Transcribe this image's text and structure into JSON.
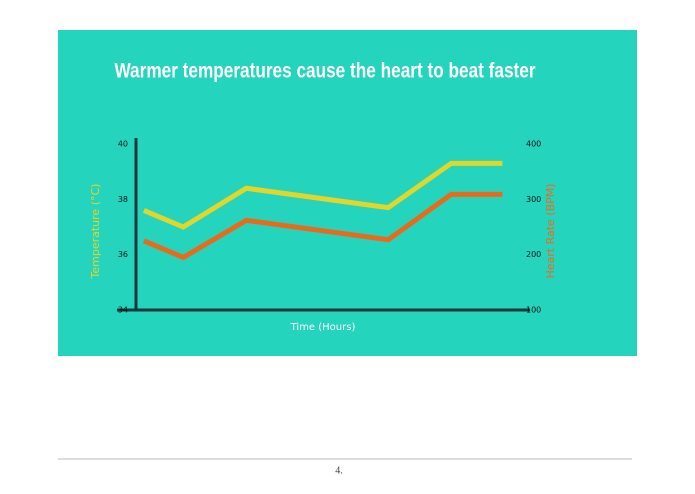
{
  "chart_data": {
    "type": "line",
    "title": "Warmer temperatures cause the heart to beat faster",
    "x_label": "Time (Hours)",
    "y_label": "Temperature (°C)",
    "y2_label": "Heart Rate (BPM)",
    "x": [
      0.2,
      1.2,
      2.8,
      6.4,
      8,
      9.3
    ],
    "xlim": [
      0,
      10
    ],
    "series": [
      {
        "name": "Temperature (°C)",
        "color": "#e2d62a",
        "values": [
          37.6,
          37.0,
          38.4,
          37.7,
          39.3,
          39.3
        ]
      },
      {
        "name": "Heart Rate (BPM)",
        "color": "#ea6a1c",
        "axis": "y2",
        "values": [
          225,
          195,
          262,
          227,
          309,
          309
        ]
      }
    ],
    "ylim": [
      34,
      40
    ],
    "yticks": [
      34,
      36,
      38,
      40
    ],
    "y2lim": [
      100,
      400
    ],
    "y2ticks": [
      100,
      200,
      300,
      400
    ]
  },
  "page_number": "4."
}
